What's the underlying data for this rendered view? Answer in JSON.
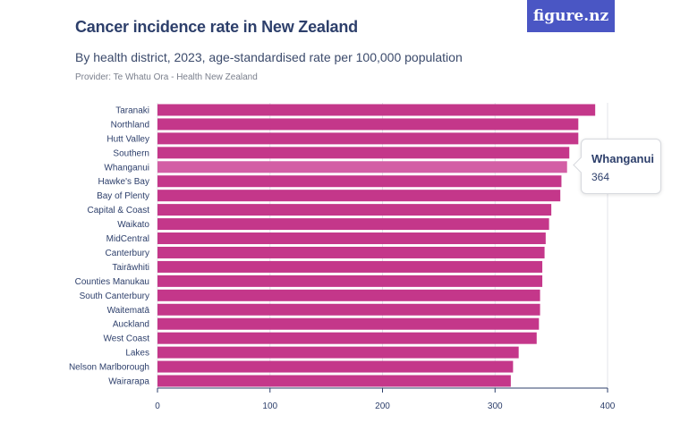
{
  "header": {
    "title": "Cancer incidence rate in New Zealand",
    "subtitle": "By health district, 2023, age-standardised rate per 100,000 population",
    "provider": "Provider: Te Whatu Ora - Health New Zealand",
    "logo": "figure.nz"
  },
  "tooltip": {
    "name": "Whanganui",
    "value": "364"
  },
  "colors": {
    "bar": "#c4378a",
    "bar_highlight": "#d35fa5",
    "grid": "#e3e5ea",
    "axis": "#2d3f6b"
  },
  "chart_data": {
    "type": "bar",
    "orientation": "horizontal",
    "title": "Cancer incidence rate in New Zealand",
    "subtitle": "By health district, 2023, age-standardised rate per 100,000 population",
    "categories": [
      "Taranaki",
      "Northland",
      "Hutt Valley",
      "Southern",
      "Whanganui",
      "Hawke's Bay",
      "Bay of Plenty",
      "Capital & Coast",
      "Waikato",
      "MidCentral",
      "Canterbury",
      "Tairāwhiti",
      "Counties Manukau",
      "South Canterbury",
      "Waitematā",
      "Auckland",
      "West Coast",
      "Lakes",
      "Nelson Marlborough",
      "Wairarapa"
    ],
    "values": [
      389,
      374,
      374,
      366,
      364,
      359,
      358,
      350,
      348,
      345,
      344,
      342,
      342,
      340,
      340,
      339,
      337,
      321,
      316,
      314
    ],
    "xlim": [
      0,
      400
    ],
    "xticks": [
      0,
      100,
      200,
      300,
      400
    ],
    "highlighted": "Whanganui",
    "grid": true
  }
}
